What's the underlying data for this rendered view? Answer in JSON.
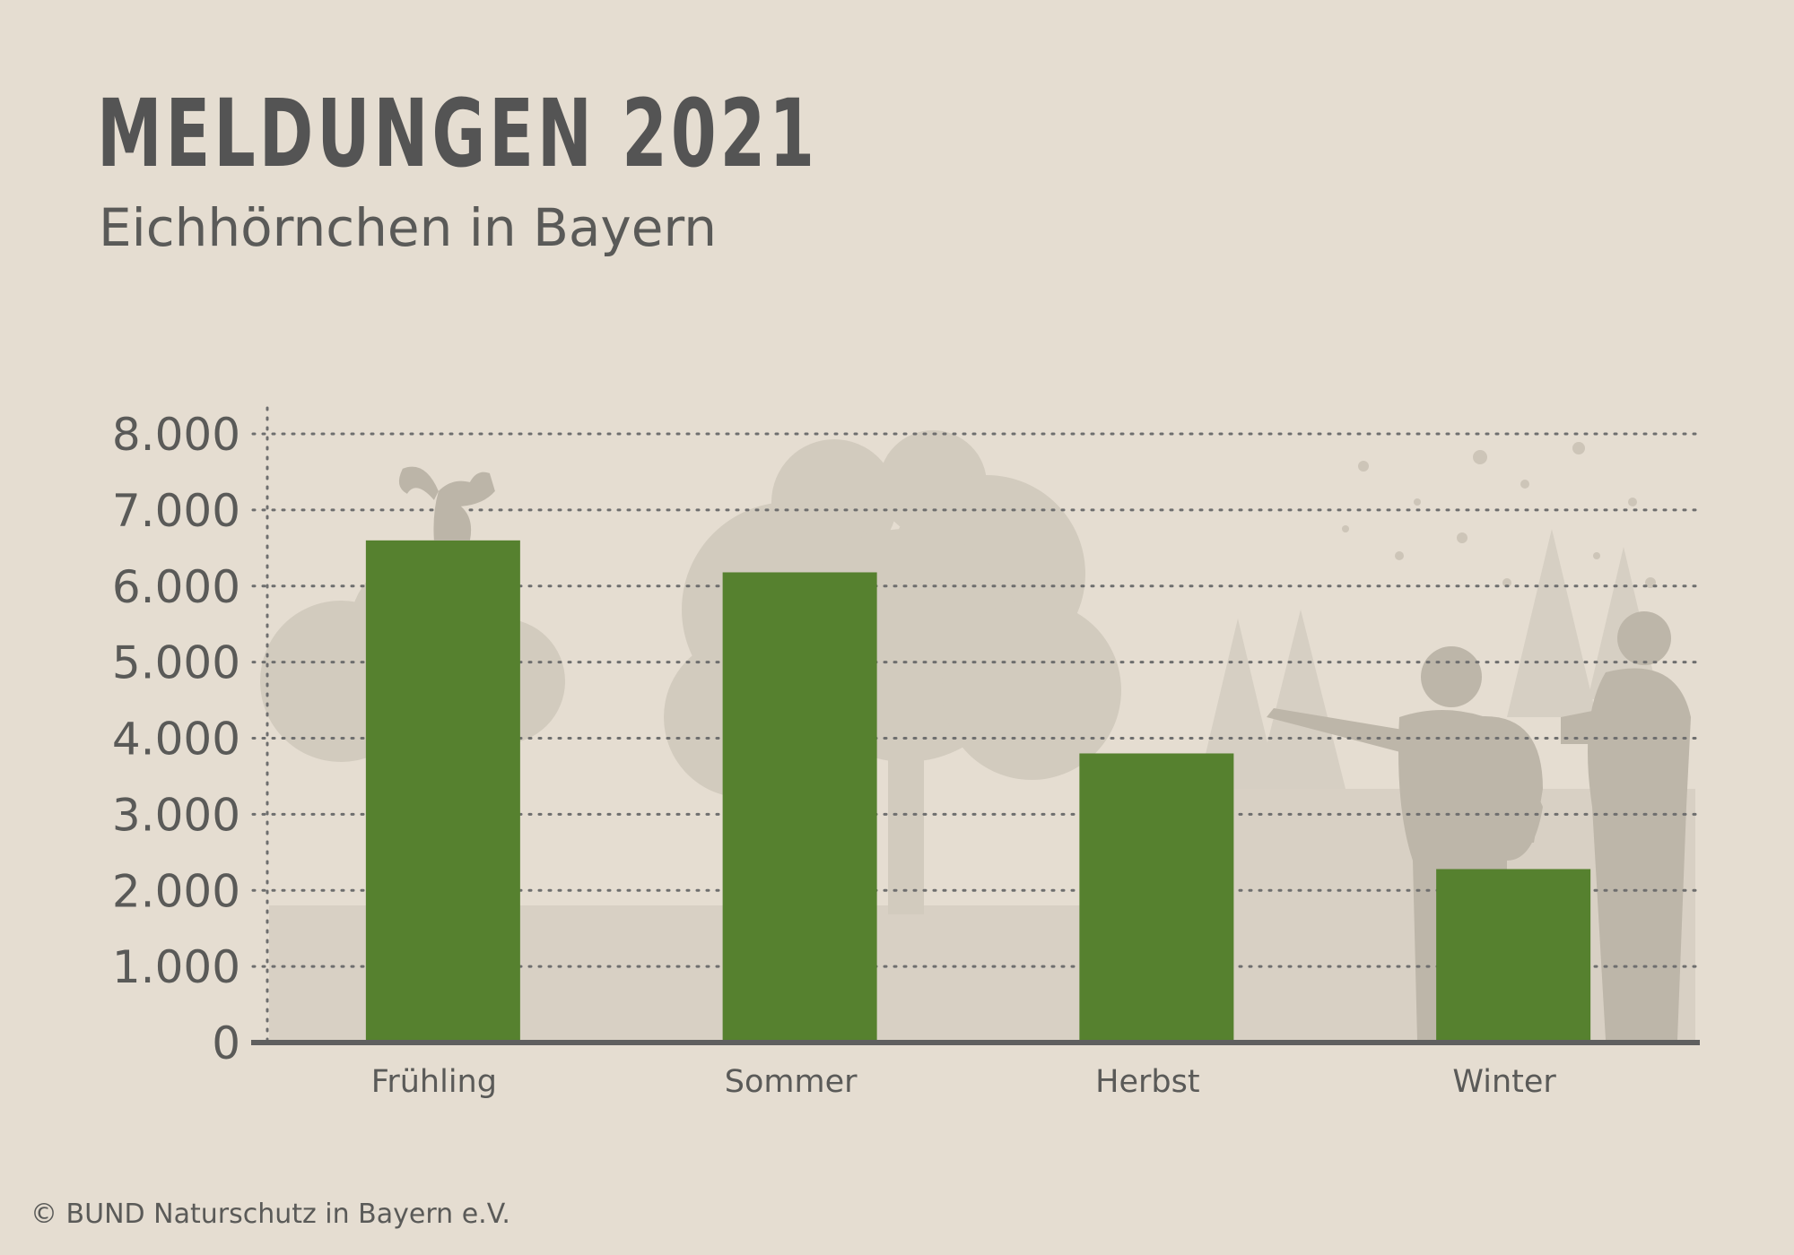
{
  "header": {
    "title": "MELDUNGEN 2021",
    "subtitle": "Eichhörnchen in Bayern"
  },
  "footer": {
    "copyright": "© BUND Naturschutz in Bayern e.V."
  },
  "colors": {
    "background": "#e5ddd1",
    "bar": "#56812f",
    "axis": "#5f5f5f",
    "grid": "#6e6e6e",
    "text": "#545454",
    "silhouette": "#bdb6a9"
  },
  "chart_data": {
    "type": "bar",
    "title": "MELDUNGEN 2021",
    "subtitle": "Eichhörnchen in Bayern",
    "xlabel": "",
    "ylabel": "",
    "categories": [
      "Frühling",
      "Sommer",
      "Herbst",
      "Winter"
    ],
    "values": [
      6600,
      6180,
      3800,
      2280
    ],
    "ylim": [
      0,
      8000
    ],
    "yticks": [
      0,
      1000,
      2000,
      3000,
      4000,
      5000,
      6000,
      7000,
      8000
    ],
    "ytick_labels": [
      "0",
      "1.000",
      "2.000",
      "3.000",
      "4.000",
      "5.000",
      "6.000",
      "7.000",
      "8.000"
    ],
    "grid": true,
    "grid_style": "dotted",
    "legend": "none",
    "background_illustration": [
      "squirrel-icon",
      "tree-silhouette",
      "person-silhouette"
    ]
  }
}
